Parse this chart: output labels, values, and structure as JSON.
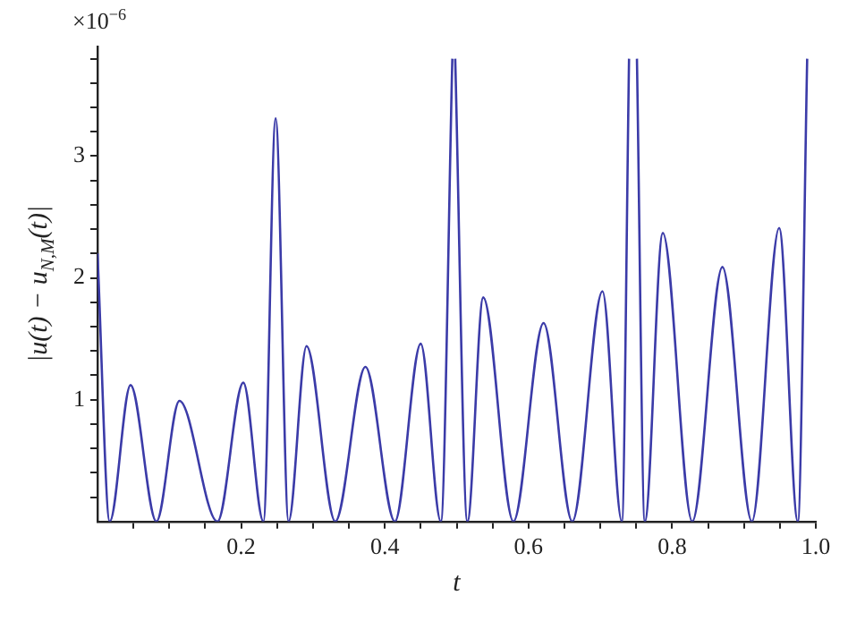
{
  "chart_data": {
    "type": "line",
    "xlabel": "t",
    "ylabel": "|u(t) − u$_{N,M}$(t)|",
    "annotations": [
      "×10$^{−6}$"
    ],
    "x": [
      0,
      0.017,
      0.046,
      0.082,
      0.114,
      0.167,
      0.203,
      0.231,
      0.248,
      0.266,
      0.291,
      0.331,
      0.373,
      0.414,
      0.45,
      0.478,
      0.494,
      0.496,
      0.498,
      0.515,
      0.537,
      0.579,
      0.621,
      0.661,
      0.703,
      0.73,
      0.74,
      0.746,
      0.751,
      0.762,
      0.787,
      0.828,
      0.87,
      0.911,
      0.949,
      0.975,
      0.988
    ],
    "series": [
      {
        "color": "#3b3ba8",
        "values": [
          2.2,
          0,
          1.12,
          0,
          0.99,
          0,
          1.14,
          0,
          3.31,
          0,
          1.44,
          0,
          1.27,
          0,
          1.46,
          0,
          3.8,
          null,
          3.8,
          0,
          1.84,
          0,
          1.63,
          0,
          1.89,
          0,
          3.8,
          null,
          3.8,
          0,
          2.37,
          0,
          2.09,
          0,
          2.41,
          0,
          3.8
        ]
      }
    ],
    "xlim": [
      0,
      1.0
    ],
    "ylim": [
      0,
      3.9
    ],
    "xticks": [
      {
        "value": 0.05,
        "label": null
      },
      {
        "value": 0.1,
        "label": null
      },
      {
        "value": 0.15,
        "label": null
      },
      {
        "value": 0.2,
        "label": "0.2"
      },
      {
        "value": 0.25,
        "label": null
      },
      {
        "value": 0.3,
        "label": null
      },
      {
        "value": 0.35,
        "label": null
      },
      {
        "value": 0.4,
        "label": "0.4"
      },
      {
        "value": 0.45,
        "label": null
      },
      {
        "value": 0.5,
        "label": null
      },
      {
        "value": 0.55,
        "label": null
      },
      {
        "value": 0.6,
        "label": "0.6"
      },
      {
        "value": 0.65,
        "label": null
      },
      {
        "value": 0.7,
        "label": null
      },
      {
        "value": 0.75,
        "label": null
      },
      {
        "value": 0.8,
        "label": "0.8"
      },
      {
        "value": 0.85,
        "label": null
      },
      {
        "value": 0.9,
        "label": null
      },
      {
        "value": 0.95,
        "label": null
      },
      {
        "value": 1.0,
        "label": "1.0"
      }
    ],
    "yticks": [
      {
        "value": 0.2,
        "label": null
      },
      {
        "value": 0.4,
        "label": null
      },
      {
        "value": 0.6,
        "label": null
      },
      {
        "value": 0.8,
        "label": null
      },
      1,
      {
        "value": 1.2,
        "label": null
      },
      {
        "value": 1.4,
        "label": null
      },
      {
        "value": 1.6,
        "label": null
      },
      {
        "value": 1.8,
        "label": null
      },
      2,
      {
        "value": 2.2,
        "label": null
      },
      {
        "value": 2.4,
        "label": null
      },
      {
        "value": 2.6,
        "label": null
      },
      {
        "value": 2.8,
        "label": null
      },
      3,
      {
        "value": 3.2,
        "label": null
      },
      {
        "value": 3.4,
        "label": null
      },
      {
        "value": 3.6,
        "label": null
      },
      {
        "value": 3.8,
        "label": null
      }
    ],
    "grid": false,
    "legend": false,
    "marker": "none",
    "line_style": "solid"
  }
}
